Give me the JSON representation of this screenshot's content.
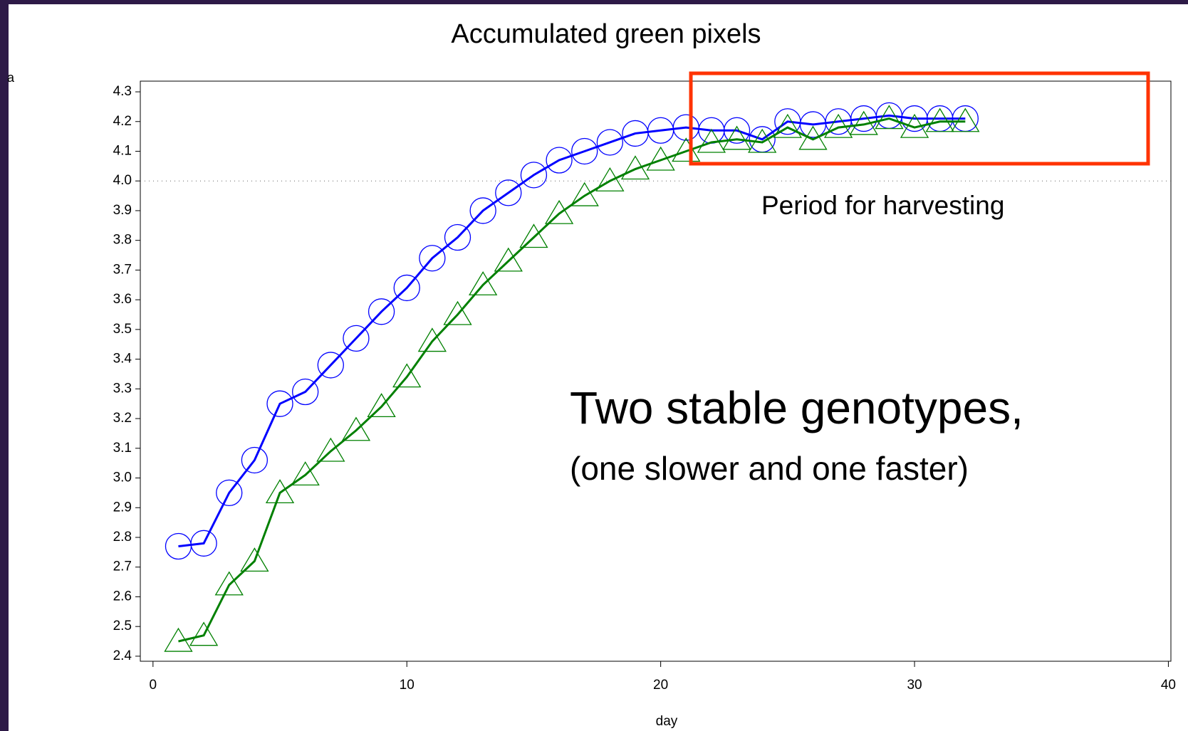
{
  "chart_data": {
    "type": "line",
    "title": "Accumulated green pixels",
    "y_label": "a",
    "x_label": "day",
    "x": [
      1,
      2,
      3,
      4,
      5,
      6,
      7,
      8,
      9,
      10,
      11,
      12,
      13,
      14,
      15,
      16,
      17,
      18,
      19,
      20,
      21,
      22,
      23,
      24,
      25,
      26,
      27,
      28,
      29,
      30,
      31,
      32
    ],
    "series": [
      {
        "marker": "circle",
        "color": "#0000ff",
        "values": [
          2.77,
          2.78,
          2.95,
          3.06,
          3.25,
          3.29,
          3.38,
          3.47,
          3.56,
          3.64,
          3.74,
          3.81,
          3.9,
          3.96,
          4.02,
          4.07,
          4.1,
          4.13,
          4.16,
          4.17,
          4.18,
          4.17,
          4.17,
          4.14,
          4.2,
          4.19,
          4.2,
          4.21,
          4.22,
          4.21,
          4.21,
          4.21
        ]
      },
      {
        "marker": "triangle",
        "color": "#008000",
        "values": [
          2.45,
          2.47,
          2.64,
          2.72,
          2.95,
          3.01,
          3.09,
          3.16,
          3.24,
          3.34,
          3.46,
          3.55,
          3.65,
          3.73,
          3.81,
          3.89,
          3.95,
          4.0,
          4.04,
          4.07,
          4.1,
          4.13,
          4.14,
          4.13,
          4.18,
          4.14,
          4.18,
          4.19,
          4.21,
          4.18,
          4.2,
          4.2
        ]
      }
    ],
    "xlim": [
      -0.5,
      40.1
    ],
    "xticks": [
      0,
      10,
      20,
      30,
      40
    ],
    "ylim": [
      2.383,
      4.336
    ],
    "yticks": [
      2.4,
      2.5,
      2.6,
      2.7,
      2.8,
      2.9,
      {
        "value": 3.0,
        "label": "3.0"
      },
      3.1,
      3.2,
      3.3,
      3.4,
      3.5,
      3.6,
      3.7,
      3.8,
      3.9,
      {
        "value": 4.0,
        "label": "4.0"
      },
      4.1,
      4.2,
      4.3
    ],
    "reference_line": 4.0,
    "annotations": [
      "Period for harvesting",
      "Two stable genotypes,",
      "(one slower and one faster)"
    ],
    "annotation_color": "#ff3300"
  }
}
